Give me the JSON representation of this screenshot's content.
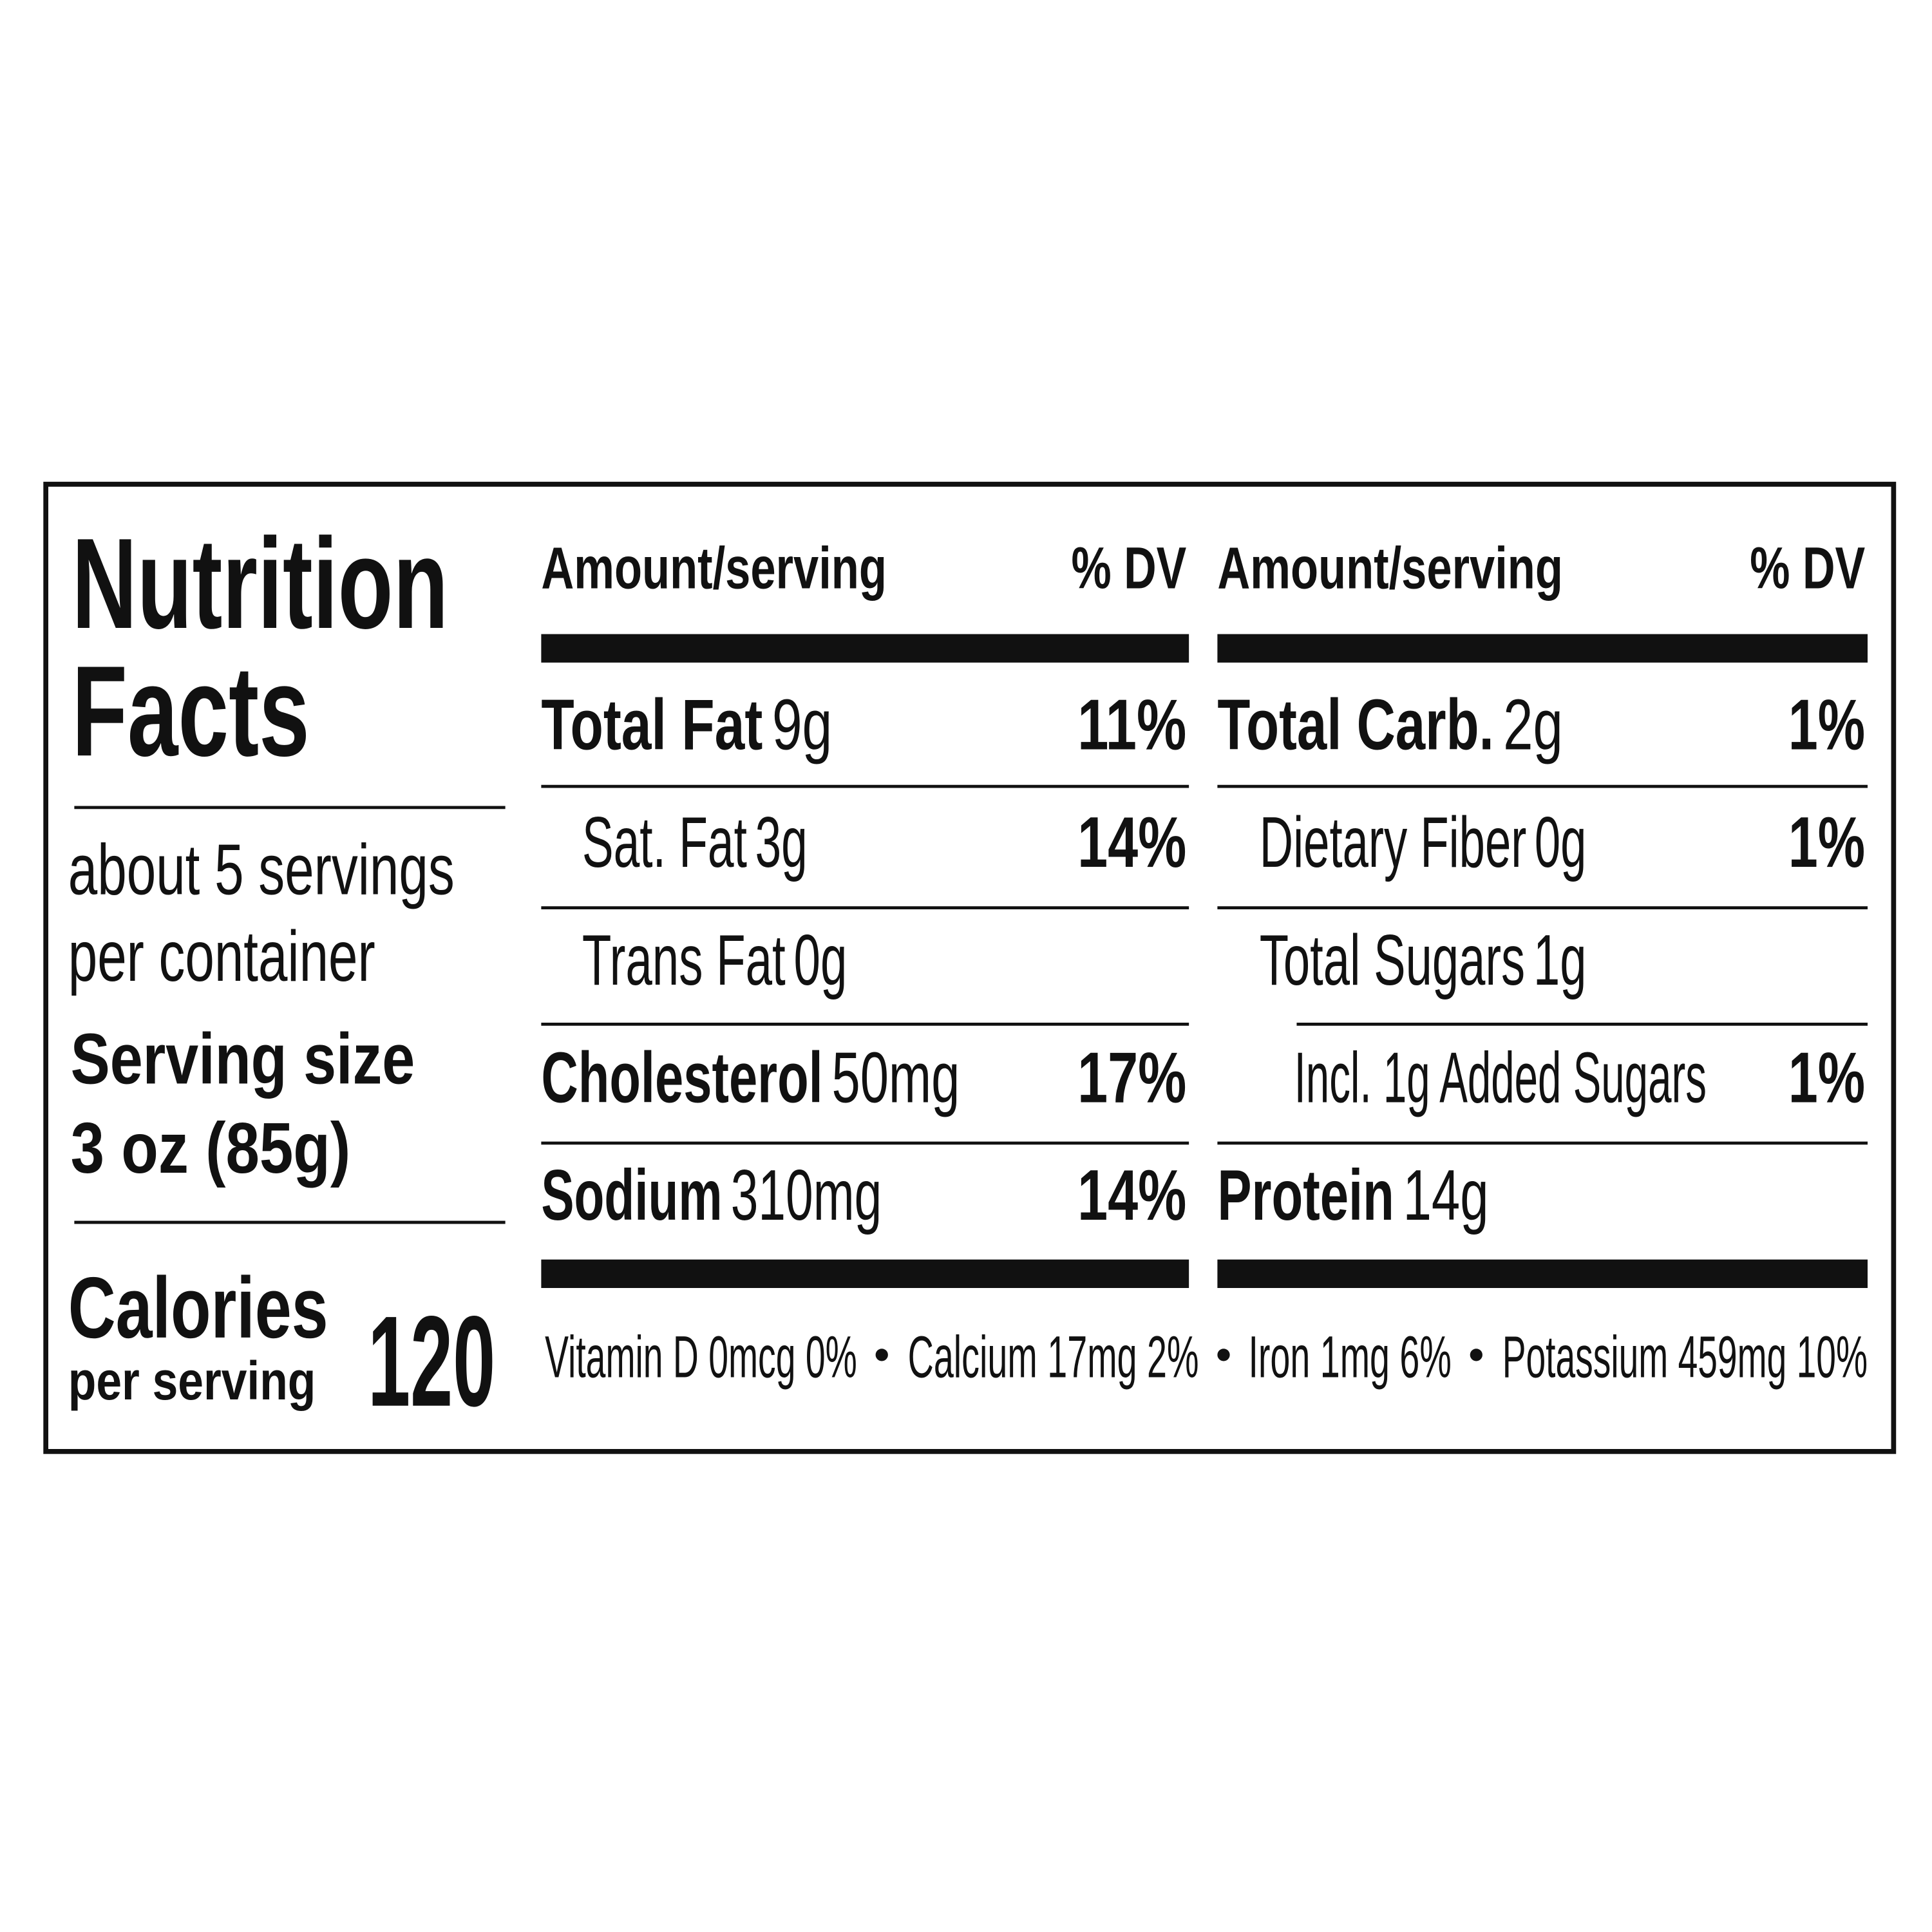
{
  "header": {
    "title_line1": "Nutrition",
    "title_line2": "Facts"
  },
  "servings": {
    "line1": "about 5 servings",
    "line2": "per container"
  },
  "serving_size": {
    "label": "Serving size",
    "value": "3 oz (85g)"
  },
  "calories": {
    "label": "Calories",
    "sublabel": "per serving",
    "value": 120
  },
  "columns": [
    {
      "header_amount": "Amount/serving",
      "header_dv": "% DV",
      "rows": [
        {
          "name": "Total Fat",
          "amount": "9g",
          "dv": "11%"
        },
        {
          "name": "Sat. Fat",
          "amount": "3g",
          "dv": "14%"
        },
        {
          "name": "Trans Fat",
          "amount": "0g"
        },
        {
          "name": "Cholesterol",
          "amount": "50mg",
          "dv": "17%"
        },
        {
          "name": "Sodium",
          "amount": "310mg",
          "dv": "14%"
        }
      ]
    },
    {
      "header_amount": "Amount/serving",
      "header_dv": "% DV",
      "rows": [
        {
          "name": "Total Carb.",
          "amount": "2g",
          "dv": "1%"
        },
        {
          "name": "Dietary Fiber",
          "amount": "0g",
          "dv": "1%"
        },
        {
          "name": "Total Sugars",
          "amount": "1g"
        },
        {
          "name": "Incl. 1g Added Sugars",
          "dv": "1%"
        },
        {
          "name": "Protein",
          "amount": "14g"
        }
      ]
    }
  ],
  "footer": [
    "Vitamin D 0mcg 0%",
    "Calcium 17mg 2%",
    "Iron 1mg 6%",
    "Potassium 459mg 10%"
  ]
}
